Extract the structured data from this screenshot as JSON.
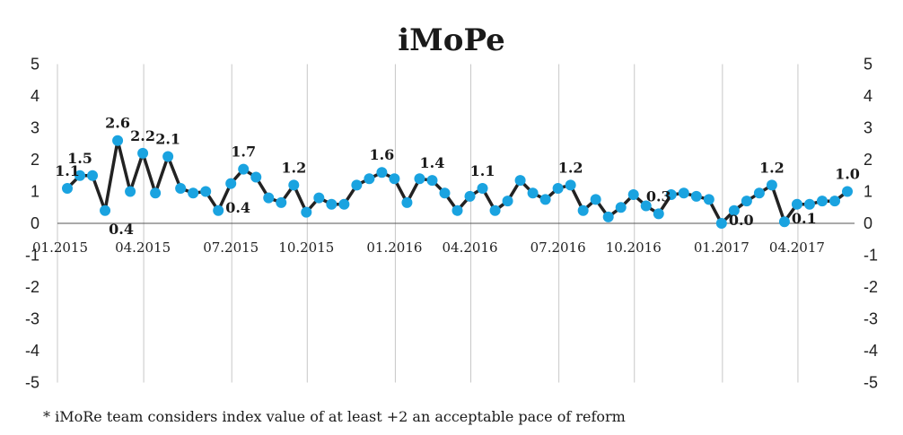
{
  "chart_data": {
    "type": "line",
    "title": "iMoPe",
    "footnote": "* iMoRe team considers index value of at least +2 an acceptable pace of reform",
    "ylim": [
      -5,
      5
    ],
    "yticks": [
      5,
      4,
      3,
      2,
      1,
      0,
      -1,
      -2,
      -3,
      -4,
      -5
    ],
    "y_tick_labels": [
      "5",
      "4",
      "3",
      "2",
      "1",
      "0",
      "-1",
      "-2",
      "-3",
      "-4",
      "-5"
    ],
    "x_tick_labels": [
      "01.2015",
      "04.2015",
      "07.2015",
      "10.2015",
      "01.2016",
      "04.2016",
      "07.2016",
      "10.2016",
      "01.2017",
      "04.2017"
    ],
    "x_tick_period_index": [
      0,
      6,
      13,
      19,
      26,
      32,
      39,
      45,
      52,
      58
    ],
    "grid": true,
    "line_color": "#222222",
    "marker_color": "#1aa3e0",
    "grid_color": "#c8c8c8",
    "series": [
      {
        "values": [
          1.1,
          1.5,
          1.5,
          0.4,
          2.6,
          1.0,
          2.2,
          0.95,
          2.1,
          1.1,
          0.95,
          1.0,
          0.4,
          1.25,
          1.7,
          1.45,
          0.8,
          0.65,
          1.2,
          0.35,
          0.8,
          0.6,
          0.6,
          1.2,
          1.4,
          1.6,
          1.4,
          0.65,
          1.4,
          1.35,
          0.95,
          0.4,
          0.85,
          1.1,
          0.4,
          0.7,
          1.35,
          0.95,
          0.75,
          1.1,
          1.2,
          0.4,
          0.75,
          0.2,
          0.5,
          0.9,
          0.55,
          0.3,
          0.9,
          0.95,
          0.85,
          0.75,
          0.0,
          0.4,
          0.7,
          0.95,
          1.2,
          0.05,
          0.6,
          0.6,
          0.7,
          0.7,
          1.0
        ]
      }
    ],
    "data_labels": [
      {
        "index": 0,
        "text": "1.1",
        "pos": "above"
      },
      {
        "index": 1,
        "text": "1.5",
        "pos": "above"
      },
      {
        "index": 3,
        "text": "0.4",
        "pos": "below"
      },
      {
        "index": 4,
        "text": "2.6",
        "pos": "above"
      },
      {
        "index": 6,
        "text": "2.2",
        "pos": "above"
      },
      {
        "index": 8,
        "text": "2.1",
        "pos": "above"
      },
      {
        "index": 12,
        "text": "0.4",
        "pos": "right"
      },
      {
        "index": 14,
        "text": "1.7",
        "pos": "above"
      },
      {
        "index": 18,
        "text": "1.2",
        "pos": "above"
      },
      {
        "index": 25,
        "text": "1.6",
        "pos": "above"
      },
      {
        "index": 29,
        "text": "1.4",
        "pos": "above"
      },
      {
        "index": 33,
        "text": "1.1",
        "pos": "above"
      },
      {
        "index": 40,
        "text": "1.2",
        "pos": "above"
      },
      {
        "index": 47,
        "text": "0.3",
        "pos": "above"
      },
      {
        "index": 52,
        "text": "0.0",
        "pos": "right"
      },
      {
        "index": 56,
        "text": "1.2",
        "pos": "above"
      },
      {
        "index": 57,
        "text": "0.1",
        "pos": "right"
      },
      {
        "index": 62,
        "text": "1.0",
        "pos": "above"
      }
    ]
  }
}
